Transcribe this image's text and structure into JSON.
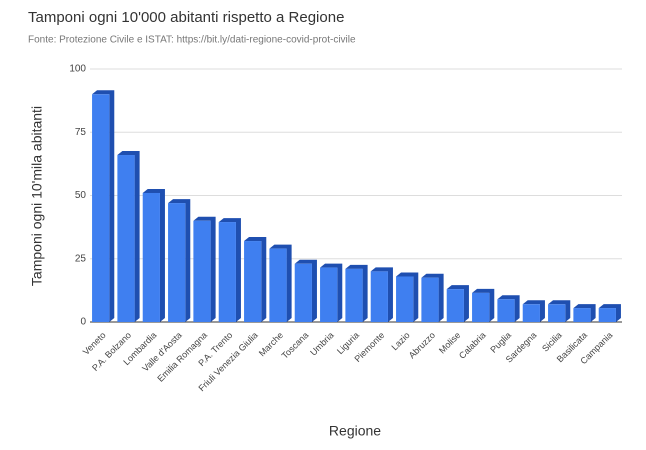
{
  "chart_data": {
    "type": "bar",
    "title": "Tamponi ogni 10'000 abitanti rispetto a Regione",
    "subtitle": "Fonte: Protezione Civile e ISTAT: https://bit.ly/dati-regione-covid-prot-civile",
    "x_label": "Regione",
    "y_label": "Tamponi ogni 10'mila abitanti",
    "categories": [
      "Veneto",
      "P.A. Bolzano",
      "Lombardia",
      "Valle d'Aosta",
      "Emilia Romagna",
      "P.A. Trento",
      "Friuli Venezia Giulia",
      "Marche",
      "Toscana",
      "Umbria",
      "Liguria",
      "Piemonte",
      "Lazio",
      "Abruzzo",
      "Molise",
      "Calabria",
      "Puglia",
      "Sardegna",
      "Sicilia",
      "Basilicata",
      "Campania"
    ],
    "values": [
      90,
      66,
      51,
      47,
      40,
      39.5,
      32,
      29,
      23,
      21.5,
      21,
      20,
      18,
      17.5,
      13,
      11.5,
      9,
      7,
      7,
      5.5,
      5.5
    ],
    "color": "#3f7ff0",
    "ylim": [
      0,
      100
    ],
    "yticks": [
      0,
      25,
      50,
      75,
      100
    ],
    "grid": true
  }
}
